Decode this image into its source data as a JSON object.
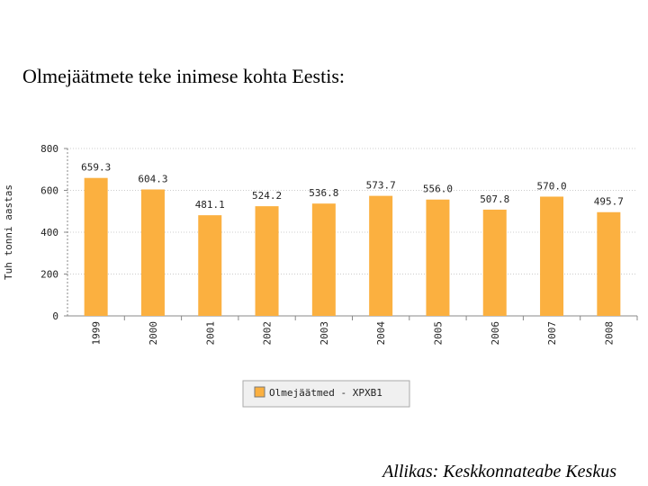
{
  "chart_data": {
    "type": "bar",
    "title": "Olmejäätmete teke inimese kohta Eestis:",
    "y_label": "Tuh tonni aastas",
    "categories": [
      "1999",
      "2000",
      "2001",
      "2002",
      "2003",
      "2004",
      "2005",
      "2006",
      "2007",
      "2008"
    ],
    "series": [
      {
        "name": "Olmejäätmed - XPXB1",
        "color": "#fbb040",
        "values": [
          659.3,
          604.3,
          481.1,
          524.2,
          536.8,
          573.7,
          556.0,
          507.8,
          570.0,
          495.7
        ],
        "value_labels": [
          "659.3",
          "604.3",
          "481.1",
          "524.2",
          "536.8",
          "573.7",
          "556.0",
          "507.8",
          "570.0",
          "495.7"
        ]
      }
    ],
    "ylim": [
      0,
      800
    ],
    "yticks": [
      0,
      200,
      400,
      600,
      800
    ],
    "grid": true,
    "source": "Allikas: Keskkonnateabe Keskus"
  }
}
